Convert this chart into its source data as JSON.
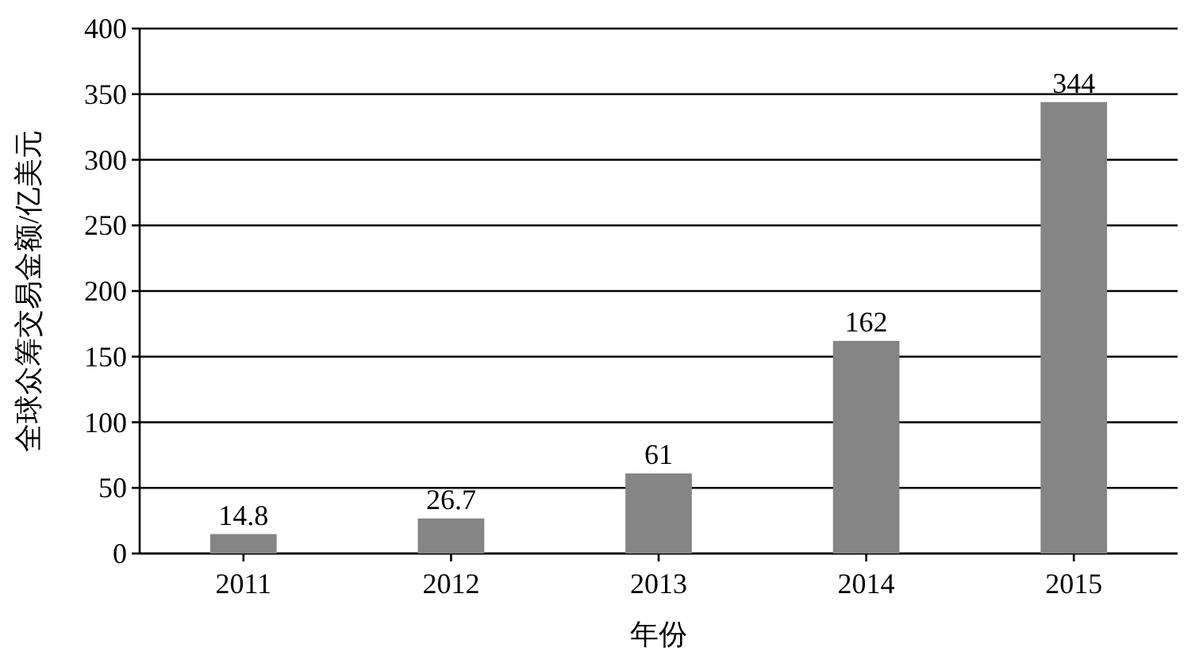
{
  "chart_data": {
    "type": "bar",
    "categories": [
      "2011",
      "2012",
      "2013",
      "2014",
      "2015"
    ],
    "values": [
      14.8,
      26.7,
      61,
      162,
      344
    ],
    "color": "#858585",
    "xlabel": "年份",
    "ylabel": "全球众筹交易金额/亿美元",
    "ylim": [
      0,
      400
    ],
    "yticks": [
      0,
      50,
      100,
      150,
      200,
      250,
      300,
      350,
      400
    ],
    "grid": "y",
    "data_labels": true
  }
}
